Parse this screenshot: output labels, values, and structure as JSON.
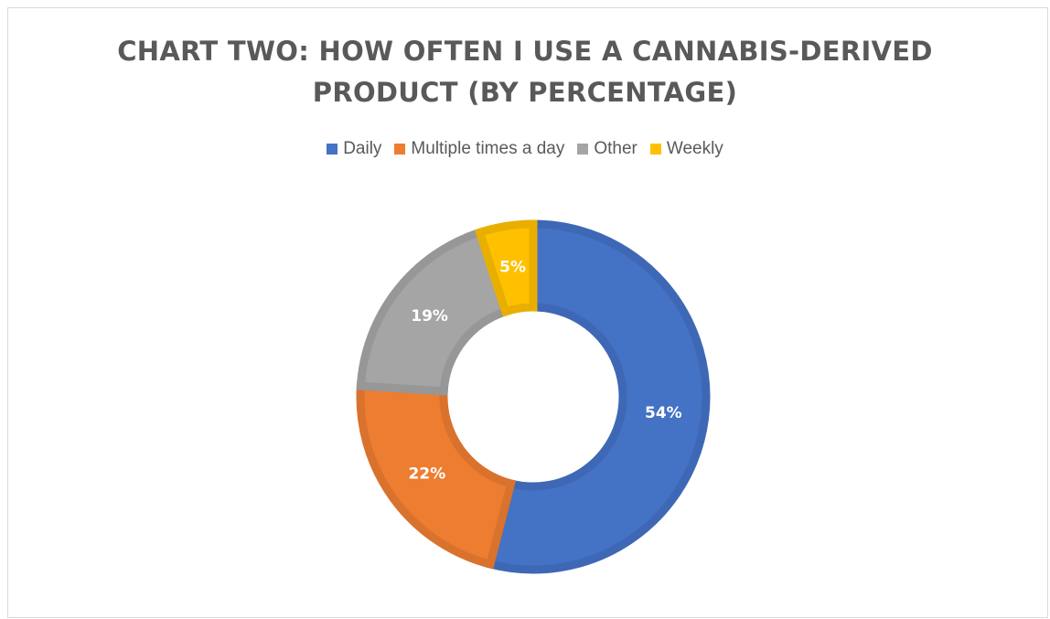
{
  "chart_data": {
    "type": "pie",
    "variant": "doughnut",
    "title_lines": [
      "CHART TWO: HOW OFTEN I USE A CANNABIS-DERIVED",
      "PRODUCT (BY PERCENTAGE)"
    ],
    "legend_position": "top",
    "categories": [
      "Daily",
      "Multiple times a day",
      "Other",
      "Weekly"
    ],
    "values": [
      54,
      22,
      19,
      5
    ],
    "labels": [
      "54%",
      "22%",
      "19%",
      "5%"
    ],
    "colors": [
      "#4472C4",
      "#ED7D31",
      "#A5A5A5",
      "#FFC000"
    ],
    "edge_colors": [
      "#3E68B5",
      "#D9722D",
      "#979797",
      "#E9AF00"
    ]
  }
}
